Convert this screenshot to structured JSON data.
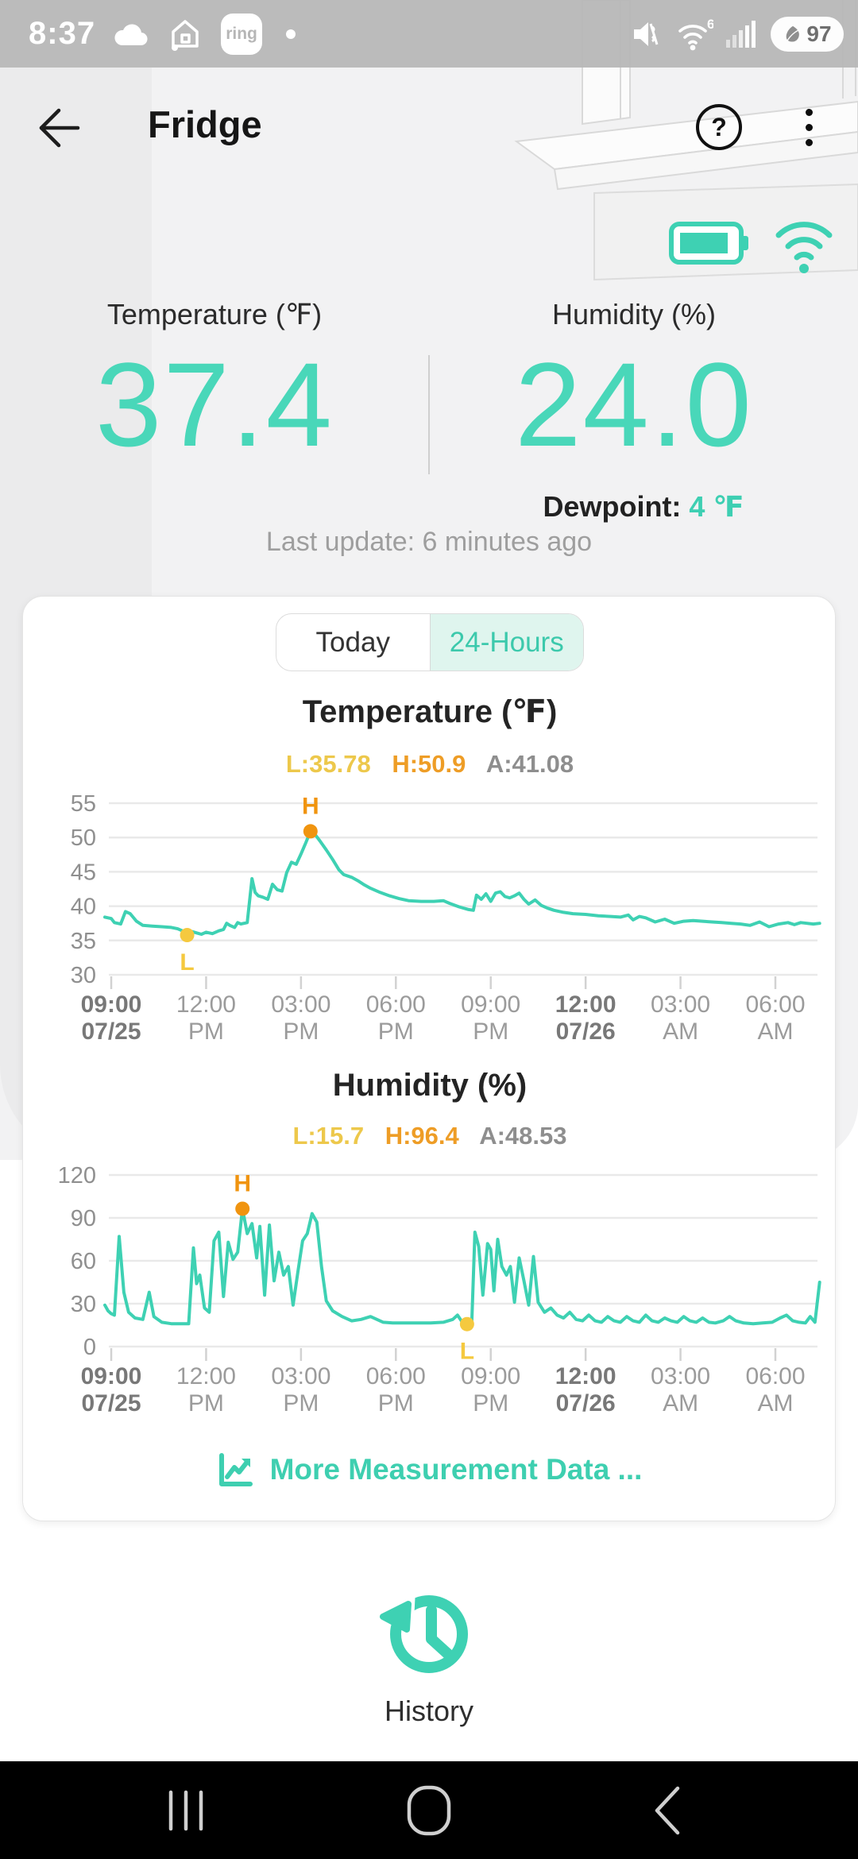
{
  "status_bar": {
    "time": "8:37",
    "ring_badge": "ring",
    "wifi_gen": "6",
    "battery_percent": "97",
    "icons": [
      "cloud-icon",
      "home-icon",
      "ring-icon",
      "mute-icon",
      "wifi-icon",
      "signal-icon",
      "battery-saver-icon"
    ]
  },
  "header": {
    "title": "Fridge",
    "help_glyph": "?"
  },
  "device": {
    "icons": [
      "battery-full-icon",
      "wifi-connected-icon"
    ]
  },
  "readings": {
    "temperature": {
      "label": "Temperature (℉)",
      "value": "37.4"
    },
    "humidity": {
      "label": "Humidity (%)",
      "value": "24.0"
    },
    "dewpoint_label": "Dewpoint:",
    "dewpoint_value": " 4 ℉",
    "last_update": "Last update: 6 minutes ago"
  },
  "tabs": {
    "today": "Today",
    "hours24": "24-Hours",
    "active": "24-Hours"
  },
  "more_link": "More Measurement Data ...",
  "history_label": "History",
  "colors": {
    "accent_teal": "#3ed1b3",
    "value_teal": "#49d7b9",
    "low_yellow": "#f5c93f",
    "high_orange": "#f0940f",
    "avg_gray": "#8e8e8e",
    "tab_active_bg": "#dff5ee",
    "grid_gray": "#e9e9e9"
  },
  "chart_data": [
    {
      "type": "line",
      "title": "Temperature (℉)",
      "stats": {
        "low": "L:35.78",
        "high": "H:50.9",
        "avg": "A:41.08"
      },
      "ylim": [
        30,
        55
      ],
      "y_ticks": [
        30,
        35,
        40,
        45,
        50,
        55
      ],
      "x_domain": [
        8.8,
        31.45
      ],
      "x_ticks": [
        {
          "t": 9,
          "line1": "09:00",
          "line2": "07/25",
          "bold": true
        },
        {
          "t": 12,
          "line1": "12:00",
          "line2": "PM",
          "bold": false
        },
        {
          "t": 15,
          "line1": "03:00",
          "line2": "PM",
          "bold": false
        },
        {
          "t": 18,
          "line1": "06:00",
          "line2": "PM",
          "bold": false
        },
        {
          "t": 21,
          "line1": "09:00",
          "line2": "PM",
          "bold": false
        },
        {
          "t": 24,
          "line1": "12:00",
          "line2": "07/26",
          "bold": true
        },
        {
          "t": 27,
          "line1": "03:00",
          "line2": "AM",
          "bold": false
        },
        {
          "t": 30,
          "line1": "06:00",
          "line2": "AM",
          "bold": false
        }
      ],
      "markers": {
        "high": {
          "t": 15.3,
          "v": 50.9,
          "label": "H"
        },
        "low": {
          "t": 11.4,
          "v": 35.78,
          "label": "L"
        }
      },
      "series": [
        {
          "name": "temperature",
          "points": [
            [
              8.8,
              38.4
            ],
            [
              9.0,
              38.2
            ],
            [
              9.1,
              37.6
            ],
            [
              9.3,
              37.4
            ],
            [
              9.45,
              39.2
            ],
            [
              9.6,
              38.9
            ],
            [
              9.8,
              37.8
            ],
            [
              10.0,
              37.2
            ],
            [
              10.3,
              37.1
            ],
            [
              10.6,
              37.0
            ],
            [
              10.9,
              36.9
            ],
            [
              11.1,
              36.7
            ],
            [
              11.25,
              36.4
            ],
            [
              11.4,
              35.78
            ],
            [
              11.55,
              36.3
            ],
            [
              11.7,
              36.1
            ],
            [
              11.85,
              35.9
            ],
            [
              12.0,
              36.2
            ],
            [
              12.2,
              36.0
            ],
            [
              12.4,
              36.4
            ],
            [
              12.55,
              36.6
            ],
            [
              12.65,
              37.5
            ],
            [
              12.75,
              37.2
            ],
            [
              12.9,
              36.9
            ],
            [
              13.0,
              37.6
            ],
            [
              13.1,
              37.4
            ],
            [
              13.3,
              37.6
            ],
            [
              13.45,
              44.0
            ],
            [
              13.55,
              42.0
            ],
            [
              13.65,
              41.5
            ],
            [
              13.8,
              41.3
            ],
            [
              13.95,
              41.0
            ],
            [
              14.1,
              43.2
            ],
            [
              14.25,
              42.4
            ],
            [
              14.4,
              42.2
            ],
            [
              14.55,
              44.9
            ],
            [
              14.7,
              46.4
            ],
            [
              14.85,
              46.1
            ],
            [
              15.0,
              47.6
            ],
            [
              15.15,
              49.2
            ],
            [
              15.3,
              50.9
            ],
            [
              15.45,
              50.4
            ],
            [
              15.6,
              49.5
            ],
            [
              15.8,
              48.2
            ],
            [
              16.0,
              46.8
            ],
            [
              16.2,
              45.3
            ],
            [
              16.35,
              44.6
            ],
            [
              16.6,
              44.2
            ],
            [
              16.8,
              43.7
            ],
            [
              17.0,
              43.1
            ],
            [
              17.2,
              42.6
            ],
            [
              17.5,
              42.0
            ],
            [
              17.8,
              41.5
            ],
            [
              18.1,
              41.1
            ],
            [
              18.4,
              40.8
            ],
            [
              18.8,
              40.7
            ],
            [
              19.2,
              40.7
            ],
            [
              19.5,
              40.8
            ],
            [
              19.7,
              40.4
            ],
            [
              20.0,
              39.9
            ],
            [
              20.3,
              39.5
            ],
            [
              20.45,
              39.4
            ],
            [
              20.55,
              41.6
            ],
            [
              20.7,
              41.0
            ],
            [
              20.85,
              41.8
            ],
            [
              21.0,
              40.7
            ],
            [
              21.15,
              41.9
            ],
            [
              21.3,
              42.1
            ],
            [
              21.45,
              41.4
            ],
            [
              21.6,
              41.2
            ],
            [
              21.75,
              41.5
            ],
            [
              21.9,
              41.9
            ],
            [
              22.05,
              41.0
            ],
            [
              22.2,
              40.3
            ],
            [
              22.4,
              40.9
            ],
            [
              22.6,
              40.1
            ],
            [
              22.8,
              39.7
            ],
            [
              23.0,
              39.4
            ],
            [
              23.3,
              39.1
            ],
            [
              23.6,
              38.9
            ],
            [
              24.0,
              38.8
            ],
            [
              24.4,
              38.6
            ],
            [
              24.8,
              38.5
            ],
            [
              25.1,
              38.4
            ],
            [
              25.35,
              38.7
            ],
            [
              25.5,
              38.0
            ],
            [
              25.7,
              38.5
            ],
            [
              25.9,
              38.3
            ],
            [
              26.2,
              37.7
            ],
            [
              26.5,
              38.1
            ],
            [
              26.8,
              37.5
            ],
            [
              27.1,
              37.8
            ],
            [
              27.4,
              37.9
            ],
            [
              27.7,
              37.8
            ],
            [
              28.0,
              37.7
            ],
            [
              28.3,
              37.6
            ],
            [
              28.6,
              37.5
            ],
            [
              28.9,
              37.4
            ],
            [
              29.2,
              37.2
            ],
            [
              29.5,
              37.7
            ],
            [
              29.8,
              37.0
            ],
            [
              30.1,
              37.4
            ],
            [
              30.4,
              37.6
            ],
            [
              30.6,
              37.3
            ],
            [
              30.8,
              37.6
            ],
            [
              31.0,
              37.5
            ],
            [
              31.2,
              37.4
            ],
            [
              31.4,
              37.5
            ]
          ]
        }
      ]
    },
    {
      "type": "line",
      "title": "Humidity (%)",
      "stats": {
        "low": "L:15.7",
        "high": "H:96.4",
        "avg": "A:48.53"
      },
      "ylim": [
        0,
        120
      ],
      "y_ticks": [
        0,
        30,
        60,
        90,
        120
      ],
      "x_domain": [
        8.8,
        31.45
      ],
      "x_ticks": [
        {
          "t": 9,
          "line1": "09:00",
          "line2": "07/25",
          "bold": true
        },
        {
          "t": 12,
          "line1": "12:00",
          "line2": "PM",
          "bold": false
        },
        {
          "t": 15,
          "line1": "03:00",
          "line2": "PM",
          "bold": false
        },
        {
          "t": 18,
          "line1": "06:00",
          "line2": "PM",
          "bold": false
        },
        {
          "t": 21,
          "line1": "09:00",
          "line2": "PM",
          "bold": false
        },
        {
          "t": 24,
          "line1": "12:00",
          "line2": "07/26",
          "bold": true
        },
        {
          "t": 27,
          "line1": "03:00",
          "line2": "AM",
          "bold": false
        },
        {
          "t": 30,
          "line1": "06:00",
          "line2": "AM",
          "bold": false
        }
      ],
      "markers": {
        "high": {
          "t": 13.15,
          "v": 96.4,
          "label": "H"
        },
        "low": {
          "t": 20.25,
          "v": 15.7,
          "label": "L"
        }
      },
      "series": [
        {
          "name": "humidity",
          "points": [
            [
              8.8,
              29
            ],
            [
              8.9,
              25
            ],
            [
              9.0,
              23
            ],
            [
              9.1,
              22
            ],
            [
              9.25,
              77
            ],
            [
              9.4,
              38
            ],
            [
              9.55,
              24
            ],
            [
              9.75,
              20
            ],
            [
              10.0,
              19
            ],
            [
              10.2,
              38
            ],
            [
              10.35,
              21
            ],
            [
              10.6,
              17
            ],
            [
              10.9,
              16
            ],
            [
              11.2,
              16
            ],
            [
              11.45,
              16
            ],
            [
              11.6,
              69
            ],
            [
              11.7,
              44
            ],
            [
              11.8,
              50
            ],
            [
              11.95,
              27
            ],
            [
              12.1,
              24
            ],
            [
              12.25,
              74
            ],
            [
              12.4,
              80
            ],
            [
              12.55,
              35
            ],
            [
              12.7,
              73
            ],
            [
              12.85,
              61
            ],
            [
              13.0,
              66
            ],
            [
              13.15,
              96.4
            ],
            [
              13.3,
              79
            ],
            [
              13.45,
              86
            ],
            [
              13.6,
              62
            ],
            [
              13.7,
              84
            ],
            [
              13.85,
              36
            ],
            [
              14.0,
              85
            ],
            [
              14.15,
              46
            ],
            [
              14.3,
              66
            ],
            [
              14.45,
              50
            ],
            [
              14.6,
              56
            ],
            [
              14.75,
              29
            ],
            [
              14.9,
              52
            ],
            [
              15.05,
              74
            ],
            [
              15.2,
              79
            ],
            [
              15.35,
              93
            ],
            [
              15.5,
              87
            ],
            [
              15.65,
              56
            ],
            [
              15.8,
              32
            ],
            [
              16.0,
              25
            ],
            [
              16.3,
              21
            ],
            [
              16.6,
              18
            ],
            [
              16.9,
              19
            ],
            [
              17.2,
              21
            ],
            [
              17.4,
              19
            ],
            [
              17.6,
              17
            ],
            [
              17.9,
              16.5
            ],
            [
              18.3,
              16.5
            ],
            [
              18.7,
              16.5
            ],
            [
              19.1,
              16.5
            ],
            [
              19.5,
              17
            ],
            [
              19.8,
              19
            ],
            [
              19.95,
              22
            ],
            [
              20.1,
              17
            ],
            [
              20.25,
              15.7
            ],
            [
              20.4,
              16
            ],
            [
              20.5,
              80
            ],
            [
              20.62,
              70
            ],
            [
              20.75,
              36
            ],
            [
              20.9,
              72
            ],
            [
              21.0,
              68
            ],
            [
              21.1,
              39
            ],
            [
              21.22,
              75
            ],
            [
              21.35,
              56
            ],
            [
              21.5,
              50
            ],
            [
              21.62,
              56
            ],
            [
              21.75,
              31
            ],
            [
              21.9,
              62
            ],
            [
              22.05,
              46
            ],
            [
              22.2,
              29
            ],
            [
              22.35,
              63
            ],
            [
              22.5,
              31
            ],
            [
              22.7,
              24
            ],
            [
              22.9,
              27
            ],
            [
              23.1,
              22
            ],
            [
              23.3,
              20
            ],
            [
              23.5,
              24
            ],
            [
              23.7,
              19
            ],
            [
              23.9,
              18
            ],
            [
              24.1,
              22
            ],
            [
              24.3,
              18
            ],
            [
              24.5,
              17
            ],
            [
              24.7,
              21
            ],
            [
              24.9,
              18
            ],
            [
              25.1,
              17
            ],
            [
              25.3,
              21
            ],
            [
              25.5,
              18
            ],
            [
              25.7,
              17
            ],
            [
              25.9,
              22
            ],
            [
              26.1,
              18
            ],
            [
              26.3,
              17
            ],
            [
              26.5,
              20
            ],
            [
              26.7,
              18
            ],
            [
              26.9,
              17
            ],
            [
              27.1,
              21
            ],
            [
              27.3,
              18
            ],
            [
              27.5,
              17
            ],
            [
              27.7,
              20
            ],
            [
              27.9,
              17
            ],
            [
              28.1,
              16.5
            ],
            [
              28.35,
              18
            ],
            [
              28.55,
              21
            ],
            [
              28.75,
              18
            ],
            [
              29.0,
              16.5
            ],
            [
              29.3,
              16
            ],
            [
              29.6,
              16.5
            ],
            [
              29.9,
              17
            ],
            [
              30.15,
              20
            ],
            [
              30.35,
              22
            ],
            [
              30.55,
              18
            ],
            [
              30.75,
              17
            ],
            [
              30.95,
              16.5
            ],
            [
              31.1,
              21
            ],
            [
              31.25,
              17
            ],
            [
              31.4,
              45
            ]
          ]
        }
      ]
    }
  ]
}
